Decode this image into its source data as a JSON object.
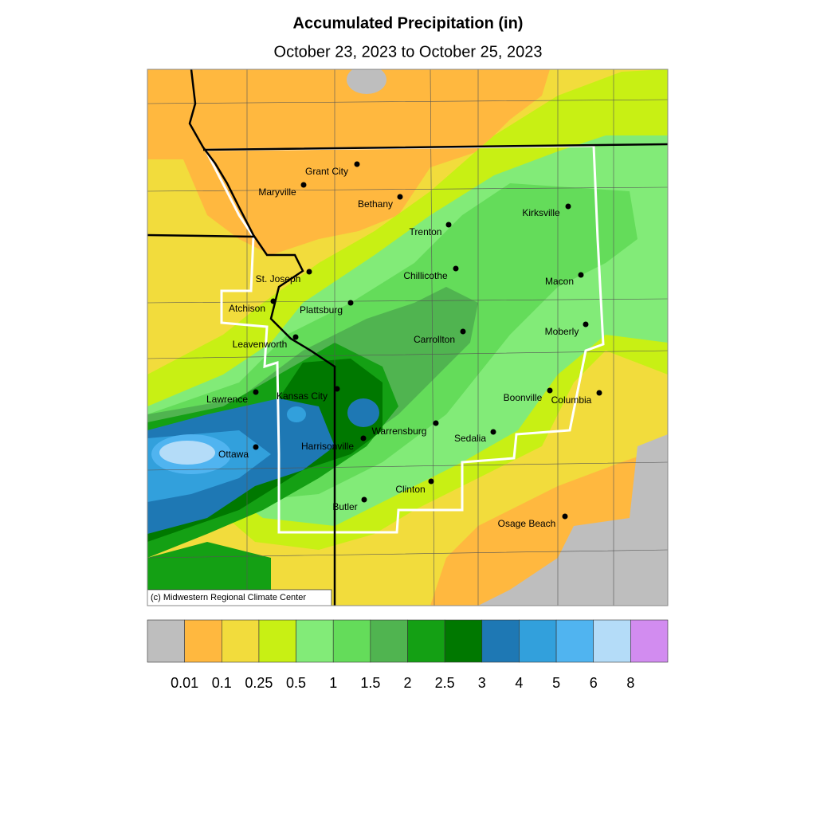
{
  "title": "Accumulated Precipitation (in)",
  "subtitle": "October 23, 2023 to October 25, 2023",
  "credit": "(c) Midwestern Regional Climate Center",
  "cities": [
    "Grant City",
    "Maryville",
    "Bethany",
    "Trenton",
    "Kirksville",
    "Chillicothe",
    "Macon",
    "St. Joseph",
    "Atchison",
    "Plattsburg",
    "Moberly",
    "Carrollton",
    "Leavenworth",
    "Kansas City",
    "Boonville",
    "Columbia",
    "Lawrence",
    "Warrensburg",
    "Sedalia",
    "Harrisonville",
    "Ottawa",
    "Clinton",
    "Butler",
    "Osage Beach"
  ],
  "legend": {
    "colors": [
      "#bebebe",
      "#ffb83f",
      "#f2dc3c",
      "#c8f014",
      "#82eb78",
      "#64dc5a",
      "#50b450",
      "#14a014",
      "#007800",
      "#1e78b4",
      "#32a0dc",
      "#50b4f0",
      "#b4dcf8",
      "#d28cf0"
    ],
    "ticks": [
      0.01,
      0.1,
      0.25,
      0.5,
      1,
      1.5,
      2,
      2.5,
      3,
      4,
      5,
      6,
      8
    ]
  }
}
